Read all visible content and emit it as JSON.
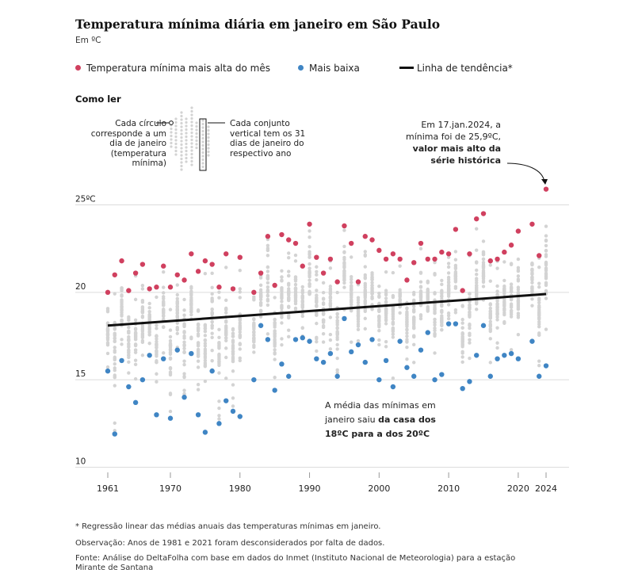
{
  "header": {
    "title": "Temperatura mínima diária em janeiro em São Paulo",
    "subtitle": "Em ºC"
  },
  "legend": {
    "high_label": "Temperatura mínima mais alta do mês",
    "low_label": "Mais baixa",
    "trend_label": "Linha de tendência*"
  },
  "howto": {
    "title": "Como ler",
    "left_note": "Cada círculo corresponde a um dia de janeiro (temperatura mínima)",
    "right_note": "Cada conjunto vertical tem os 31 dias de janeiro do respectivo ano"
  },
  "annotations": {
    "record_l1": "Em 17.jan.2024, a",
    "record_l2": "mínima foi de 25,9ºC,",
    "record_l3": "valor mais alto da",
    "record_l4": "série histórica",
    "avg_l1": "A média das mínimas em",
    "avg_l2a": "janeiro saiu ",
    "avg_l2b": "da casa dos",
    "avg_l3": "18ºC para a dos 20ºC"
  },
  "footer": {
    "note1": "* Regressão linear das médias anuais das temperaturas mínimas em janeiro.",
    "note2": "Observação: Anos de 1981 e 2021 foram desconsiderados por falta de dados.",
    "source": "Fonte: Análise do DeltaFolha com base em dados do Inmet (Instituto Nacional de Meteorologia) para a estação Mirante de Santana"
  },
  "colors": {
    "high": "#d0405f",
    "low": "#3f85c4",
    "daily": "#d3d3d3",
    "trend": "#111111",
    "grid": "#dcdcdc"
  },
  "chart_data": {
    "type": "scatter",
    "title": "Temperatura mínima diária em janeiro em São Paulo",
    "ylabel": "Em ºC",
    "ylim": [
      10,
      26
    ],
    "xlim": [
      1960,
      2026
    ],
    "y_ticks": [
      {
        "value": 10,
        "label": "10"
      },
      {
        "value": 15,
        "label": "15"
      },
      {
        "value": 20,
        "label": "20"
      },
      {
        "value": 25,
        "label": "25ºC"
      }
    ],
    "x_ticks": [
      {
        "value": 1961,
        "label": "1961"
      },
      {
        "value": 1970,
        "label": "1970"
      },
      {
        "value": 1980,
        "label": "1980"
      },
      {
        "value": 1990,
        "label": "1990"
      },
      {
        "value": 2000,
        "label": "2000"
      },
      {
        "value": 2010,
        "label": "2010"
      },
      {
        "value": 2020,
        "label": "2020"
      },
      {
        "value": 2024,
        "label": "2024"
      }
    ],
    "years_missing": [
      1981,
      2021
    ],
    "series": [
      {
        "name": "Temperatura mínima mais alta do mês",
        "points": [
          [
            1961,
            20.0
          ],
          [
            1962,
            21.0
          ],
          [
            1963,
            21.8
          ],
          [
            1964,
            20.1
          ],
          [
            1965,
            21.1
          ],
          [
            1966,
            21.6
          ],
          [
            1967,
            20.2
          ],
          [
            1968,
            20.3
          ],
          [
            1969,
            21.5
          ],
          [
            1970,
            20.3
          ],
          [
            1971,
            21.0
          ],
          [
            1972,
            20.7
          ],
          [
            1973,
            22.2
          ],
          [
            1974,
            21.2
          ],
          [
            1975,
            21.8
          ],
          [
            1976,
            21.6
          ],
          [
            1977,
            20.3
          ],
          [
            1978,
            22.2
          ],
          [
            1979,
            20.2
          ],
          [
            1980,
            22.0
          ],
          [
            1982,
            20.0
          ],
          [
            1983,
            21.1
          ],
          [
            1984,
            23.2
          ],
          [
            1985,
            20.4
          ],
          [
            1986,
            23.3
          ],
          [
            1987,
            23.0
          ],
          [
            1988,
            22.8
          ],
          [
            1989,
            21.5
          ],
          [
            1990,
            23.9
          ],
          [
            1991,
            22.0
          ],
          [
            1992,
            21.1
          ],
          [
            1993,
            21.9
          ],
          [
            1994,
            20.6
          ],
          [
            1995,
            23.8
          ],
          [
            1996,
            22.8
          ],
          [
            1997,
            20.6
          ],
          [
            1998,
            23.2
          ],
          [
            1999,
            23.0
          ],
          [
            2000,
            22.4
          ],
          [
            2001,
            21.9
          ],
          [
            2002,
            22.2
          ],
          [
            2003,
            21.9
          ],
          [
            2004,
            20.7
          ],
          [
            2005,
            21.7
          ],
          [
            2006,
            22.8
          ],
          [
            2007,
            21.9
          ],
          [
            2008,
            21.9
          ],
          [
            2009,
            22.3
          ],
          [
            2010,
            22.2
          ],
          [
            2011,
            23.6
          ],
          [
            2012,
            20.1
          ],
          [
            2013,
            22.2
          ],
          [
            2014,
            24.2
          ],
          [
            2015,
            24.5
          ],
          [
            2016,
            21.8
          ],
          [
            2017,
            21.9
          ],
          [
            2018,
            22.3
          ],
          [
            2019,
            22.7
          ],
          [
            2020,
            23.5
          ],
          [
            2022,
            23.9
          ],
          [
            2023,
            22.1
          ],
          [
            2024,
            25.9
          ]
        ]
      },
      {
        "name": "Mais baixa",
        "points": [
          [
            1961,
            15.5
          ],
          [
            1962,
            11.9
          ],
          [
            1963,
            16.1
          ],
          [
            1964,
            14.6
          ],
          [
            1965,
            13.7
          ],
          [
            1966,
            15.0
          ],
          [
            1967,
            16.4
          ],
          [
            1968,
            13.0
          ],
          [
            1969,
            16.2
          ],
          [
            1970,
            12.8
          ],
          [
            1971,
            16.7
          ],
          [
            1972,
            14.0
          ],
          [
            1973,
            16.5
          ],
          [
            1974,
            13.0
          ],
          [
            1975,
            12.0
          ],
          [
            1976,
            15.5
          ],
          [
            1977,
            12.5
          ],
          [
            1978,
            13.8
          ],
          [
            1979,
            13.2
          ],
          [
            1980,
            12.9
          ],
          [
            1982,
            15.0
          ],
          [
            1983,
            18.1
          ],
          [
            1984,
            17.3
          ],
          [
            1985,
            14.4
          ],
          [
            1986,
            15.9
          ],
          [
            1987,
            15.2
          ],
          [
            1988,
            17.3
          ],
          [
            1989,
            17.4
          ],
          [
            1990,
            17.2
          ],
          [
            1991,
            16.2
          ],
          [
            1992,
            16.0
          ],
          [
            1993,
            16.5
          ],
          [
            1994,
            15.2
          ],
          [
            1995,
            18.5
          ],
          [
            1996,
            16.6
          ],
          [
            1997,
            17.0
          ],
          [
            1998,
            16.0
          ],
          [
            1999,
            17.3
          ],
          [
            2000,
            15.0
          ],
          [
            2001,
            16.1
          ],
          [
            2002,
            14.6
          ],
          [
            2003,
            17.2
          ],
          [
            2004,
            15.7
          ],
          [
            2005,
            15.2
          ],
          [
            2006,
            16.7
          ],
          [
            2007,
            17.7
          ],
          [
            2008,
            15.0
          ],
          [
            2009,
            15.3
          ],
          [
            2010,
            18.2
          ],
          [
            2011,
            18.2
          ],
          [
            2012,
            14.5
          ],
          [
            2013,
            14.9
          ],
          [
            2014,
            16.4
          ],
          [
            2015,
            18.1
          ],
          [
            2016,
            15.2
          ],
          [
            2017,
            16.2
          ],
          [
            2018,
            16.4
          ],
          [
            2019,
            16.5
          ],
          [
            2020,
            16.2
          ],
          [
            2022,
            17.2
          ],
          [
            2023,
            15.2
          ],
          [
            2024,
            15.8
          ]
        ]
      },
      {
        "name": "Linha de tendência*",
        "type": "line",
        "points": [
          [
            1961,
            18.1
          ],
          [
            2024,
            19.9
          ]
        ]
      }
    ],
    "record": {
      "year": 2024,
      "value": 25.9
    }
  }
}
